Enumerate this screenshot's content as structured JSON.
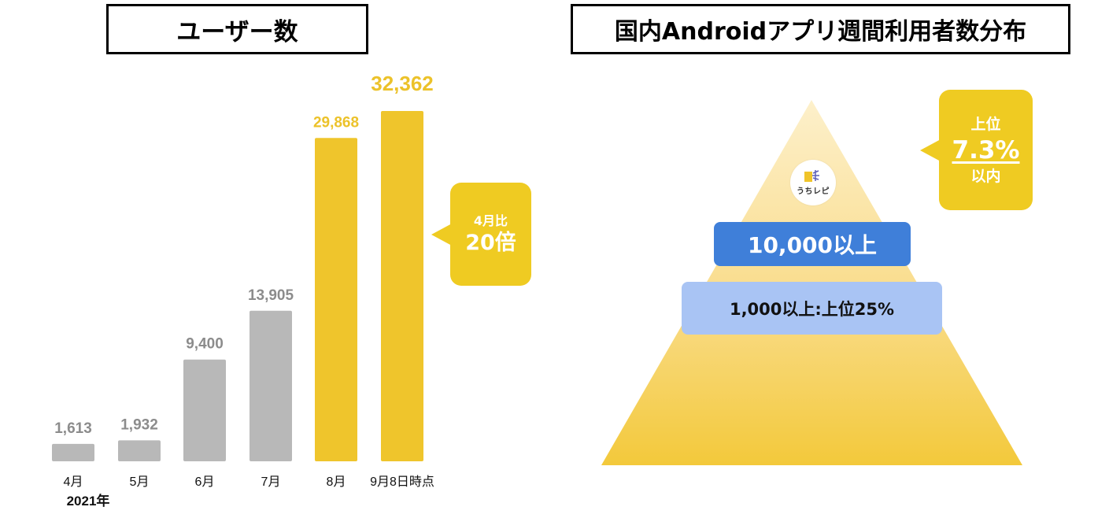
{
  "left_panel": {
    "title": "ユーザー数",
    "callout": {
      "line1": "4月比",
      "line2": "20倍"
    }
  },
  "right_panel": {
    "title": "国内Androidアプリ週間利用者数分布",
    "badge": {
      "line1": "上位",
      "line2": "7.3%",
      "line3": "以内"
    },
    "tier_high": "10,000以上",
    "tier_mid": "1,000以上:上位25%",
    "logo_text": "うちレピ"
  },
  "colors": {
    "gray_bar": "#b8b8b8",
    "gold_bar": "#efc52c",
    "gray_label": "#8c8c8c",
    "gold_label": "#ecc22a",
    "callout": "#efcb22",
    "tier_high": "#3f7fd9",
    "tier_mid": "#a9c4f4"
  },
  "chart_data": {
    "type": "bar",
    "categories": [
      "4月",
      "5月",
      "6月",
      "7月",
      "8月",
      "9月8日時点"
    ],
    "category_sublabels": [
      "2021年",
      "",
      "",
      "",
      "",
      ""
    ],
    "values": [
      1613,
      1932,
      9400,
      13905,
      29868,
      32362
    ],
    "value_labels": [
      "1,613",
      "1,932",
      "9,400",
      "13,905",
      "29,868",
      "32,362"
    ],
    "highlighted": [
      false,
      false,
      false,
      false,
      true,
      true
    ],
    "title": "ユーザー数",
    "xlabel": "",
    "ylabel": "",
    "ylim": [
      0,
      32362
    ],
    "grid": false,
    "legend": "none"
  }
}
